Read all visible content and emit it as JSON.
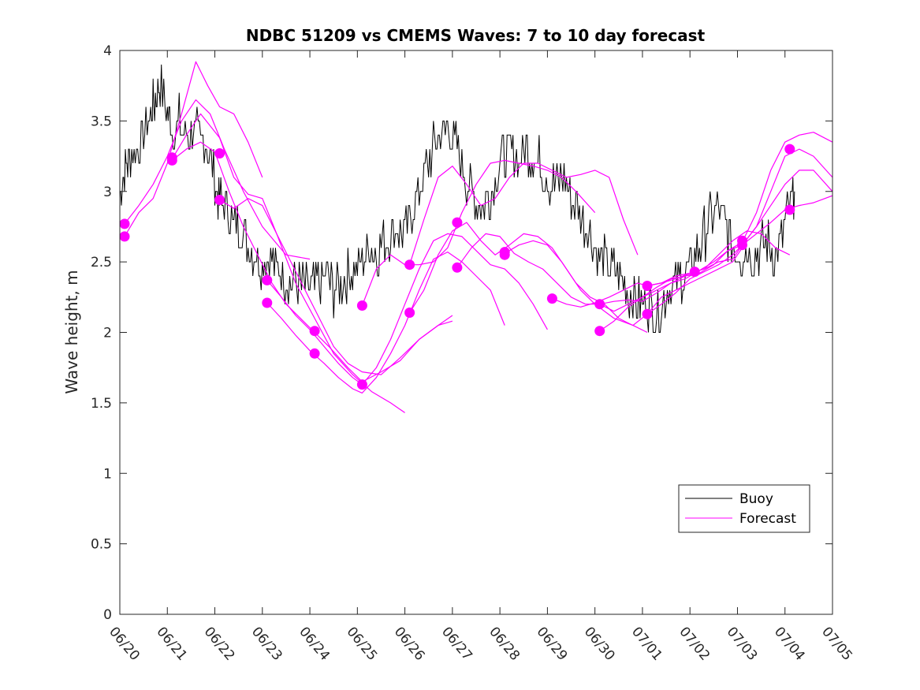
{
  "chart_data": {
    "type": "line",
    "title": "NDBC 51209 vs CMEMS Waves: 7 to 10 day forecast",
    "xlabel": "",
    "ylabel": "Wave height, m",
    "xlim": [
      "06/20",
      "07/05"
    ],
    "ylim": [
      0,
      4
    ],
    "x_tick_labels": [
      "06/20",
      "06/21",
      "06/22",
      "06/23",
      "06/24",
      "06/25",
      "06/26",
      "06/27",
      "06/28",
      "06/29",
      "06/30",
      "07/01",
      "07/02",
      "07/03",
      "07/04",
      "07/05"
    ],
    "y_tick_labels": [
      "0",
      "0.5",
      "1",
      "1.5",
      "2",
      "2.5",
      "3",
      "3.5",
      "4"
    ],
    "y_ticks": [
      0,
      0.5,
      1,
      1.5,
      2,
      2.5,
      3,
      3.5,
      4
    ],
    "grid": false,
    "legend": {
      "placement": "bottom-right",
      "entries": [
        "Buoy",
        "Forecast"
      ]
    },
    "colors": {
      "buoy": "#000000",
      "forecast": "#ff00ff"
    },
    "buoy": {
      "name": "Buoy",
      "x_days": [
        0,
        0.1,
        0.2,
        0.35,
        0.5,
        0.65,
        0.75,
        0.85,
        1.0,
        1.1,
        1.25,
        1.4,
        1.55,
        1.7,
        1.85,
        2.0,
        2.1,
        2.25,
        2.4,
        2.55,
        2.7,
        2.85,
        3.0,
        3.15,
        3.3,
        3.45,
        3.6,
        3.75,
        3.9,
        4.05,
        4.2,
        4.35,
        4.5,
        4.65,
        4.8,
        4.95,
        5.1,
        5.25,
        5.4,
        5.55,
        5.7,
        5.85,
        6.0,
        6.15,
        6.3,
        6.45,
        6.6,
        6.75,
        6.9,
        7.05,
        7.2,
        7.35,
        7.5,
        7.65,
        7.8,
        7.95,
        8.1,
        8.25,
        8.4,
        8.55,
        8.7,
        8.85,
        9.0,
        9.15,
        9.3,
        9.45,
        9.6,
        9.75,
        9.9,
        10.05,
        10.2,
        10.35,
        10.5,
        10.65,
        10.8,
        10.95,
        11.1,
        11.25,
        11.4,
        11.55,
        11.7,
        11.85,
        12.0,
        12.15,
        12.3,
        12.45,
        12.6,
        12.75,
        12.9,
        13.05,
        13.2,
        13.35,
        13.5,
        13.65,
        13.8,
        13.95,
        14.1,
        14.2
      ],
      "values": [
        3.0,
        3.15,
        3.25,
        3.3,
        3.4,
        3.55,
        3.65,
        3.75,
        3.55,
        3.45,
        3.5,
        3.4,
        3.45,
        3.35,
        3.3,
        3.05,
        2.95,
        2.85,
        2.75,
        2.75,
        2.65,
        2.55,
        2.5,
        2.55,
        2.45,
        2.4,
        2.35,
        2.35,
        2.3,
        2.3,
        2.35,
        2.4,
        2.3,
        2.35,
        2.4,
        2.45,
        2.5,
        2.6,
        2.55,
        2.65,
        2.7,
        2.75,
        2.7,
        2.85,
        3.0,
        3.15,
        3.3,
        3.4,
        3.45,
        3.35,
        3.2,
        3.05,
        2.95,
        2.9,
        3.0,
        3.15,
        3.25,
        3.3,
        3.2,
        3.3,
        3.25,
        3.2,
        3.1,
        3.05,
        3.1,
        3.0,
        2.9,
        2.8,
        2.7,
        2.55,
        2.5,
        2.45,
        2.4,
        2.3,
        2.25,
        2.2,
        2.2,
        2.15,
        2.2,
        2.3,
        2.35,
        2.4,
        2.45,
        2.55,
        2.7,
        2.8,
        2.85,
        2.75,
        2.6,
        2.55,
        2.6,
        2.55,
        2.6,
        2.65,
        2.55,
        2.7,
        2.9,
        3.0
      ]
    },
    "forecast_series": [
      {
        "name": "Forecast",
        "x_days": [
          0.1,
          0.4,
          0.7,
          1.0,
          1.3,
          1.6,
          1.85,
          2.1,
          2.4,
          2.7,
          3.0
        ],
        "values": [
          2.68,
          2.85,
          2.95,
          3.2,
          3.55,
          3.92,
          3.75,
          3.6,
          3.55,
          3.35,
          3.1
        ]
      },
      {
        "name": "Forecast",
        "x_days": [
          0.1,
          0.4,
          0.7,
          1.0,
          1.3,
          1.6,
          1.9,
          2.2,
          2.6,
          3.0,
          3.5,
          4.0
        ],
        "values": [
          2.77,
          2.9,
          3.05,
          3.25,
          3.5,
          3.65,
          3.55,
          3.3,
          3.0,
          2.75,
          2.55,
          2.52
        ]
      },
      {
        "name": "Forecast",
        "x_days": [
          1.1,
          1.4,
          1.7,
          2.1,
          2.4,
          2.7,
          3.0,
          3.3,
          3.7,
          4.1,
          4.5,
          4.9,
          5.3,
          5.7,
          6.0
        ],
        "values": [
          3.23,
          3.4,
          3.55,
          3.38,
          3.1,
          2.98,
          2.95,
          2.7,
          2.35,
          2.1,
          1.85,
          1.7,
          1.58,
          1.5,
          1.43
        ]
      },
      {
        "name": "Forecast",
        "x_days": [
          1.1,
          1.4,
          1.7,
          2.0,
          2.3,
          2.6,
          2.9,
          3.2,
          3.5,
          3.8,
          4.1,
          4.4,
          4.8,
          5.1,
          5.5,
          5.9,
          6.3,
          6.7,
          7.0
        ],
        "values": [
          3.22,
          3.3,
          3.35,
          3.28,
          3.0,
          2.75,
          2.55,
          2.35,
          2.2,
          2.1,
          2.0,
          1.9,
          1.75,
          1.65,
          1.72,
          1.8,
          1.95,
          2.05,
          2.12
        ]
      },
      {
        "name": "Forecast",
        "x_days": [
          2.1,
          2.4,
          2.7,
          3.0,
          3.3,
          3.6,
          3.9,
          4.2,
          4.5,
          4.8,
          5.1,
          5.5,
          5.9,
          6.3,
          6.7,
          7.0
        ],
        "values": [
          2.94,
          2.88,
          2.95,
          2.9,
          2.7,
          2.5,
          2.3,
          2.1,
          1.9,
          1.78,
          1.72,
          1.7,
          1.82,
          1.95,
          2.05,
          2.08
        ]
      },
      {
        "name": "Forecast",
        "x_days": [
          3.1,
          3.4,
          3.7,
          4.0,
          4.3,
          4.6,
          4.9,
          5.1,
          5.4,
          5.7,
          6.0,
          6.3,
          6.6,
          6.9,
          7.2,
          7.5,
          7.8,
          8.1,
          8.4,
          8.7,
          9.0
        ],
        "values": [
          2.37,
          2.25,
          2.12,
          2.02,
          1.9,
          1.78,
          1.68,
          1.63,
          1.75,
          1.95,
          2.2,
          2.45,
          2.65,
          2.7,
          2.68,
          2.58,
          2.48,
          2.45,
          2.35,
          2.2,
          2.02
        ]
      },
      {
        "name": "Forecast",
        "x_days": [
          3.1,
          3.4,
          3.7,
          4.0,
          4.3,
          4.6,
          4.9,
          5.1,
          5.4,
          5.7,
          6.0,
          6.3,
          6.6,
          6.9,
          7.2,
          7.5,
          7.8,
          8.1
        ],
        "values": [
          2.21,
          2.1,
          1.98,
          1.87,
          1.78,
          1.68,
          1.6,
          1.57,
          1.68,
          1.85,
          2.05,
          2.3,
          2.52,
          2.57,
          2.5,
          2.4,
          2.3,
          2.05
        ]
      },
      {
        "name": "Forecast",
        "x_days": [
          5.1,
          5.4,
          5.7,
          6.0,
          6.3,
          6.6,
          6.9,
          7.2,
          7.5,
          7.8,
          8.1,
          8.4,
          8.7,
          9.0,
          9.3,
          9.6,
          10.0
        ],
        "values": [
          2.19,
          2.45,
          2.55,
          2.48,
          2.48,
          2.5,
          2.6,
          2.85,
          3.05,
          3.2,
          3.22,
          3.2,
          3.18,
          3.15,
          3.1,
          3.0,
          2.85
        ]
      },
      {
        "name": "Forecast",
        "x_days": [
          6.1,
          6.4,
          6.7,
          7.0,
          7.3,
          7.6,
          7.9,
          8.2,
          8.5,
          8.8,
          9.1,
          9.4,
          9.7,
          10.0,
          10.4,
          10.8,
          11.1
        ],
        "values": [
          2.14,
          2.3,
          2.55,
          2.72,
          2.78,
          2.65,
          2.55,
          2.62,
          2.7,
          2.68,
          2.6,
          2.45,
          2.3,
          2.2,
          2.1,
          2.05,
          2.0
        ]
      },
      {
        "name": "Forecast",
        "x_days": [
          6.1,
          6.4,
          6.7,
          7.0,
          7.3,
          7.6,
          7.9,
          8.2,
          8.5,
          8.8,
          9.1,
          9.4,
          9.7,
          10.0,
          10.3,
          10.6,
          10.9
        ],
        "values": [
          2.48,
          2.8,
          3.1,
          3.18,
          3.05,
          2.9,
          2.95,
          3.1,
          3.2,
          3.2,
          3.15,
          3.1,
          3.12,
          3.15,
          3.1,
          2.8,
          2.55
        ]
      },
      {
        "name": "Forecast",
        "x_days": [
          7.1,
          7.4,
          7.7,
          8.0,
          8.3,
          8.6,
          8.9,
          9.2,
          9.5,
          9.8,
          10.1,
          10.4,
          10.7,
          11.0,
          11.3,
          11.6,
          11.9,
          12.2
        ],
        "values": [
          2.46,
          2.6,
          2.7,
          2.68,
          2.56,
          2.5,
          2.45,
          2.35,
          2.25,
          2.2,
          2.2,
          2.15,
          2.2,
          2.25,
          2.32,
          2.38,
          2.4,
          2.43
        ]
      },
      {
        "name": "Forecast",
        "x_days": [
          8.1,
          8.4,
          8.7,
          9.0,
          9.3,
          9.6,
          9.9,
          10.2,
          10.5,
          10.8,
          11.1,
          11.4,
          11.7,
          12.0,
          12.3,
          12.6,
          12.9,
          13.1
        ],
        "values": [
          2.56,
          2.62,
          2.65,
          2.62,
          2.5,
          2.35,
          2.25,
          2.2,
          2.1,
          2.05,
          2.13,
          2.25,
          2.3,
          2.35,
          2.4,
          2.45,
          2.5,
          2.6
        ]
      },
      {
        "name": "Forecast",
        "x_days": [
          9.1,
          9.4,
          9.7,
          10.0,
          10.3,
          10.6,
          10.9,
          11.1,
          11.4,
          11.7,
          12.0,
          12.3,
          12.6,
          12.9,
          13.2,
          13.5,
          13.8,
          14.1
        ],
        "values": [
          2.24,
          2.2,
          2.18,
          2.21,
          2.25,
          2.3,
          2.35,
          2.33,
          2.35,
          2.4,
          2.42,
          2.45,
          2.55,
          2.65,
          2.72,
          2.7,
          2.6,
          2.55
        ]
      },
      {
        "name": "Forecast",
        "x_days": [
          10.1,
          10.4,
          10.7,
          11.0,
          11.3,
          11.6,
          11.9,
          12.2,
          12.5,
          12.8,
          13.1,
          13.4,
          13.7,
          14.0,
          14.3,
          14.6,
          15.0
        ],
        "values": [
          2.2,
          2.22,
          2.23,
          2.22,
          2.28,
          2.35,
          2.4,
          2.42,
          2.48,
          2.58,
          2.64,
          2.85,
          3.15,
          3.35,
          3.4,
          3.42,
          3.35
        ]
      },
      {
        "name": "Forecast",
        "x_days": [
          10.1,
          10.4,
          10.7,
          11.0,
          11.3,
          11.6,
          11.9,
          12.2,
          12.5,
          12.8,
          13.1,
          13.4,
          13.7,
          14.0,
          14.3,
          14.6,
          15.0
        ],
        "values": [
          2.01,
          2.08,
          2.18,
          2.25,
          2.3,
          2.35,
          2.38,
          2.44,
          2.5,
          2.58,
          2.62,
          2.75,
          3.0,
          3.25,
          3.3,
          3.25,
          3.1
        ]
      },
      {
        "name": "Forecast",
        "x_days": [
          11.1,
          11.4,
          11.7,
          12.0,
          12.3,
          12.6,
          12.9,
          13.1,
          13.4,
          13.7,
          14.0,
          14.3,
          14.6,
          15.0
        ],
        "values": [
          2.33,
          2.35,
          2.38,
          2.42,
          2.45,
          2.5,
          2.52,
          2.62,
          2.75,
          2.9,
          3.05,
          3.15,
          3.15,
          3.0
        ]
      },
      {
        "name": "Forecast",
        "x_days": [
          11.1,
          11.4,
          11.7,
          12.0,
          12.3,
          12.6,
          12.9,
          13.1,
          13.4,
          13.7,
          14.0,
          14.3,
          14.6,
          15.0
        ],
        "values": [
          2.13,
          2.2,
          2.28,
          2.38,
          2.43,
          2.48,
          2.55,
          2.62,
          2.7,
          2.78,
          2.87,
          2.9,
          2.92,
          2.97
        ]
      }
    ],
    "forecast_markers": {
      "x_days": [
        0.1,
        0.1,
        1.1,
        1.1,
        2.1,
        2.1,
        3.1,
        3.1,
        4.1,
        4.1,
        5.1,
        5.1,
        6.1,
        6.1,
        7.1,
        7.1,
        8.1,
        8.1,
        9.1,
        10.1,
        10.1,
        11.1,
        11.1,
        12.1,
        13.1,
        13.1,
        14.1,
        14.1
      ],
      "values": [
        2.68,
        2.77,
        3.22,
        3.24,
        3.27,
        2.94,
        2.37,
        2.21,
        2.01,
        1.85,
        2.19,
        1.63,
        2.48,
        2.14,
        2.78,
        2.46,
        2.57,
        2.55,
        2.24,
        2.2,
        2.01,
        2.33,
        2.13,
        2.43,
        2.62,
        2.65,
        3.3,
        2.87
      ]
    }
  }
}
